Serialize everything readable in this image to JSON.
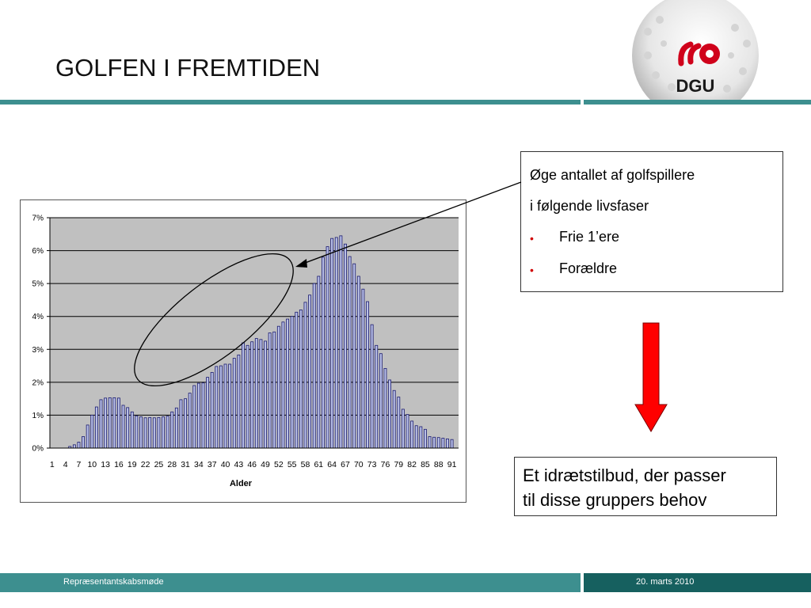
{
  "slide": {
    "title": "GOLFEN I FREMTIDEN",
    "logo_text": "DGU"
  },
  "callout": {
    "line1": "Øge antallet af golfspillere",
    "line2": "i følgende livsfaser",
    "bullets": [
      "Frie 1’ere",
      "Forældre"
    ],
    "bullet_glyph": "•"
  },
  "conclusion": {
    "line1": "Et idrætstilbud, der passer",
    "line2": "til disse gruppers behov"
  },
  "footer": {
    "left": "Repræsentantskabsmøde",
    "right": "20. marts 2010"
  },
  "colors": {
    "teal": "#3d8f8f",
    "dark_teal": "#16605f",
    "arrow_red": "#ff0000",
    "logo_red": "#d0021b",
    "bar_fill": "#b8bfe6",
    "bar_stroke": "#1a1a6e",
    "plot_bg": "#c0c0c0"
  },
  "chart_data": {
    "type": "bar",
    "xlabel": "Alder",
    "ylabel": "",
    "ylim": [
      0,
      0.07
    ],
    "yticks": [
      "0%",
      "1%",
      "2%",
      "3%",
      "4%",
      "5%",
      "6%",
      "7%"
    ],
    "x_tick_labels": [
      "1",
      "4",
      "7",
      "10",
      "13",
      "16",
      "19",
      "22",
      "25",
      "28",
      "31",
      "34",
      "37",
      "40",
      "43",
      "46",
      "49",
      "52",
      "55",
      "58",
      "61",
      "64",
      "67",
      "70",
      "73",
      "76",
      "79",
      "82",
      "85",
      "88",
      "91"
    ],
    "grid": true,
    "legend": "none",
    "categories": [
      1,
      2,
      3,
      4,
      5,
      6,
      7,
      8,
      9,
      10,
      11,
      12,
      13,
      14,
      15,
      16,
      17,
      18,
      19,
      20,
      21,
      22,
      23,
      24,
      25,
      26,
      27,
      28,
      29,
      30,
      31,
      32,
      33,
      34,
      35,
      36,
      37,
      38,
      39,
      40,
      41,
      42,
      43,
      44,
      45,
      46,
      47,
      48,
      49,
      50,
      51,
      52,
      53,
      54,
      55,
      56,
      57,
      58,
      59,
      60,
      61,
      62,
      63,
      64,
      65,
      66,
      67,
      68,
      69,
      70,
      71,
      72,
      73,
      74,
      75,
      76,
      77,
      78,
      79,
      80,
      81,
      82,
      83,
      84,
      85,
      86,
      87,
      88,
      89,
      90,
      91,
      92
    ],
    "values": [
      0.0,
      0.0,
      0.0,
      0.0,
      0.0005,
      0.001,
      0.0018,
      0.0035,
      0.007,
      0.01,
      0.0125,
      0.0147,
      0.0152,
      0.0153,
      0.0153,
      0.0152,
      0.013,
      0.0123,
      0.011,
      0.0098,
      0.0095,
      0.0092,
      0.0093,
      0.0092,
      0.0093,
      0.0095,
      0.0097,
      0.011,
      0.0122,
      0.0147,
      0.015,
      0.0167,
      0.019,
      0.0197,
      0.0198,
      0.0215,
      0.023,
      0.0248,
      0.025,
      0.0255,
      0.0255,
      0.0273,
      0.0283,
      0.032,
      0.0312,
      0.0323,
      0.0333,
      0.033,
      0.0325,
      0.035,
      0.0353,
      0.037,
      0.0383,
      0.0392,
      0.04,
      0.0413,
      0.042,
      0.0443,
      0.0465,
      0.05,
      0.0522,
      0.058,
      0.0612,
      0.0637,
      0.064,
      0.0645,
      0.062,
      0.0582,
      0.056,
      0.0522,
      0.0483,
      0.0445,
      0.0375,
      0.0312,
      0.0287,
      0.0242,
      0.0207,
      0.0175,
      0.0155,
      0.0118,
      0.0102,
      0.0082,
      0.0068,
      0.0065,
      0.0057,
      0.0035,
      0.0033,
      0.0032,
      0.003,
      0.0028,
      0.0026,
      0.0
    ]
  }
}
